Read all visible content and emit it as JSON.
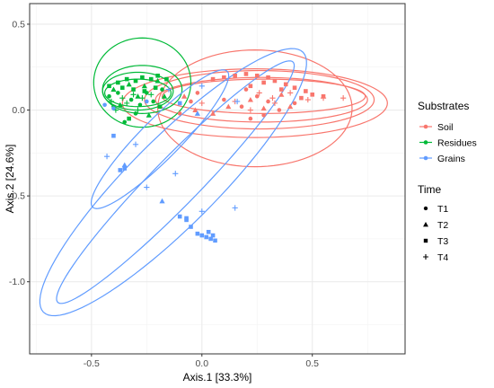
{
  "chart_data": {
    "type": "scatter",
    "xlabel": "Axis.1   [33.3%]",
    "ylabel": "Axis.2   [24.6%]",
    "xlim": [
      -0.78,
      0.92
    ],
    "ylim": [
      -1.42,
      0.62
    ],
    "x_ticks": [
      -0.5,
      0.0,
      0.5
    ],
    "x_tick_labels": [
      "-0.5",
      "0.0",
      "0.5"
    ],
    "y_ticks": [
      0.5,
      0.0,
      -0.5,
      -1.0
    ],
    "y_tick_labels": [
      "0.5",
      "0.0",
      "-0.5",
      "-1.0"
    ],
    "grid": true,
    "legend_position": "right",
    "colors": {
      "Soil": "#f8766d",
      "Residues": "#00ba38",
      "Grains": "#619cff"
    },
    "legends": [
      {
        "title": "Substrates",
        "entries": [
          "Soil",
          "Residues",
          "Grains"
        ]
      },
      {
        "title": "Time",
        "entries": [
          "T1",
          "T2",
          "T3",
          "T4"
        ]
      }
    ],
    "ellipses": [
      {
        "series": "Soil",
        "cx": 0.27,
        "cy": 0.06,
        "rx": 0.48,
        "ry": 0.13,
        "angle": 0
      },
      {
        "series": "Soil",
        "cx": 0.26,
        "cy": 0.06,
        "rx": 0.52,
        "ry": 0.17,
        "angle": 0
      },
      {
        "series": "Soil",
        "cx": 0.24,
        "cy": 0.04,
        "rx": 0.6,
        "ry": 0.2,
        "angle": 0
      },
      {
        "series": "Soil",
        "cx": 0.24,
        "cy": 0.01,
        "rx": 0.44,
        "ry": 0.34,
        "angle": 0
      },
      {
        "series": "Soil",
        "cx": 0.28,
        "cy": 0.08,
        "rx": 0.46,
        "ry": 0.1,
        "angle": 0
      },
      {
        "series": "Residues",
        "cx": -0.29,
        "cy": 0.1,
        "rx": 0.15,
        "ry": 0.08,
        "angle": 0
      },
      {
        "series": "Residues",
        "cx": -0.29,
        "cy": 0.11,
        "rx": 0.16,
        "ry": 0.11,
        "angle": 0
      },
      {
        "series": "Residues",
        "cx": -0.27,
        "cy": 0.12,
        "rx": 0.18,
        "ry": 0.14,
        "angle": 0
      },
      {
        "series": "Residues",
        "cx": -0.27,
        "cy": 0.16,
        "rx": 0.22,
        "ry": 0.26,
        "angle": 0
      },
      {
        "series": "Grains",
        "cx": -0.13,
        "cy": -0.42,
        "rx": 0.96,
        "ry": 0.22,
        "angle": 53
      },
      {
        "series": "Grains",
        "cx": -0.12,
        "cy": -0.42,
        "rx": 0.88,
        "ry": 0.12,
        "angle": 53
      },
      {
        "series": "Grains",
        "cx": -0.19,
        "cy": -0.17,
        "rx": 0.5,
        "ry": 0.1,
        "angle": 53
      }
    ],
    "series": [
      {
        "name": "Soil",
        "time": "T1",
        "points": [
          [
            0.25,
            0.08
          ],
          [
            0.3,
            0.05
          ],
          [
            0.18,
            0.02
          ],
          [
            0.35,
            0.0
          ],
          [
            0.22,
            -0.05
          ],
          [
            -0.05,
            0.05
          ],
          [
            0.1,
            0.06
          ],
          [
            -0.1,
            -0.02
          ],
          [
            0.42,
            0.04
          ],
          [
            0.28,
            -0.03
          ],
          [
            0.2,
            0.12
          ],
          [
            -0.02,
            0.1
          ]
        ]
      },
      {
        "series_note": "",
        "name": "Soil",
        "time": "T2",
        "points": [
          [
            0.12,
            0.02
          ],
          [
            0.28,
            0.01
          ],
          [
            -0.03,
            0.0
          ],
          [
            0.22,
            0.06
          ],
          [
            0.36,
            0.09
          ],
          [
            0.05,
            -0.02
          ],
          [
            0.4,
            0.02
          ],
          [
            -0.08,
            0.08
          ]
        ]
      },
      {
        "name": "Soil",
        "time": "T3",
        "points": [
          [
            0.15,
            0.2
          ],
          [
            0.2,
            0.21
          ],
          [
            0.25,
            0.2
          ],
          [
            0.3,
            0.19
          ],
          [
            0.33,
            0.17
          ],
          [
            0.38,
            0.15
          ],
          [
            0.42,
            0.13
          ],
          [
            0.47,
            0.11
          ],
          [
            0.5,
            0.09
          ],
          [
            0.55,
            0.08
          ],
          [
            0.1,
            0.19
          ],
          [
            0.05,
            0.18
          ],
          [
            0.36,
            0.12
          ],
          [
            0.45,
            0.07
          ],
          [
            0.28,
            0.16
          ],
          [
            0.22,
            0.14
          ]
        ]
      },
      {
        "name": "Soil",
        "time": "T4",
        "points": [
          [
            0.26,
            0.1
          ],
          [
            0.32,
            0.07
          ],
          [
            0.4,
            0.1
          ],
          [
            0.48,
            0.06
          ],
          [
            0.15,
            0.05
          ],
          [
            0.55,
            0.07
          ],
          [
            0.22,
            0.0
          ],
          [
            0.0,
            0.04
          ],
          [
            0.64,
            0.07
          ],
          [
            0.33,
            0.04
          ]
        ]
      },
      {
        "name": "Residues",
        "time": "T1",
        "points": [
          [
            -0.38,
            0.1
          ],
          [
            -0.32,
            0.06
          ],
          [
            -0.28,
            0.03
          ],
          [
            -0.35,
            -0.07
          ],
          [
            -0.4,
            0.02
          ],
          [
            -0.25,
            0.1
          ],
          [
            -0.22,
            0.05
          ],
          [
            -0.42,
            0.08
          ],
          [
            -0.3,
            -0.02
          ],
          [
            -0.18,
            0.12
          ]
        ]
      },
      {
        "name": "Residues",
        "time": "T2",
        "points": [
          [
            -0.4,
            0.12
          ],
          [
            -0.33,
            0.15
          ],
          [
            -0.26,
            0.14
          ],
          [
            -0.2,
            0.17
          ],
          [
            -0.37,
            0.03
          ],
          [
            -0.29,
            0.08
          ],
          [
            -0.24,
            -0.03
          ],
          [
            -0.17,
            0.08
          ]
        ]
      },
      {
        "name": "Residues",
        "time": "T3",
        "points": [
          [
            -0.42,
            0.14
          ],
          [
            -0.38,
            0.16
          ],
          [
            -0.34,
            0.18
          ],
          [
            -0.3,
            0.17
          ],
          [
            -0.27,
            0.19
          ],
          [
            -0.23,
            0.18
          ],
          [
            -0.2,
            0.2
          ],
          [
            -0.16,
            0.18
          ],
          [
            -0.36,
            0.13
          ],
          [
            -0.31,
            0.12
          ],
          [
            -0.26,
            0.11
          ],
          [
            -0.21,
            0.13
          ],
          [
            -0.33,
            -0.05
          ],
          [
            -0.19,
            0.02
          ]
        ]
      },
      {
        "name": "Residues",
        "time": "T4",
        "points": [
          [
            -0.41,
            0.05
          ],
          [
            -0.36,
            0.07
          ],
          [
            -0.31,
            0.09
          ],
          [
            -0.27,
            0.07
          ],
          [
            -0.23,
            0.09
          ],
          [
            -0.39,
            0.0
          ],
          [
            -0.34,
            0.04
          ],
          [
            -0.29,
            0.0
          ]
        ]
      },
      {
        "name": "Grains",
        "time": "T1",
        "points": [
          [
            -0.44,
            0.03
          ],
          [
            -0.25,
            0.05
          ],
          [
            -0.4,
            0.01
          ]
        ]
      },
      {
        "name": "Grains",
        "time": "T2",
        "points": [
          [
            -0.35,
            -0.32
          ],
          [
            -0.18,
            -0.53
          ],
          [
            -0.02,
            -0.02
          ]
        ]
      },
      {
        "name": "Grains",
        "time": "T3",
        "points": [
          [
            -0.35,
            -0.34
          ],
          [
            -0.37,
            -0.35
          ],
          [
            -0.1,
            -0.62
          ],
          [
            -0.07,
            -0.64
          ],
          [
            -0.05,
            -0.68
          ],
          [
            -0.02,
            -0.72
          ],
          [
            0.0,
            -0.73
          ],
          [
            0.02,
            -0.74
          ],
          [
            0.04,
            -0.75
          ],
          [
            0.05,
            -0.73
          ],
          [
            0.03,
            -0.71
          ],
          [
            -0.07,
            -0.63
          ],
          [
            0.06,
            -0.76
          ],
          [
            -0.4,
            -0.15
          ],
          [
            -0.1,
            0.04
          ]
        ]
      },
      {
        "name": "Grains",
        "time": "T4",
        "points": [
          [
            -0.43,
            -0.27
          ],
          [
            -0.25,
            -0.45
          ],
          [
            -0.12,
            -0.37
          ],
          [
            0.0,
            -0.59
          ],
          [
            0.15,
            -0.57
          ],
          [
            -0.15,
            0.12
          ],
          [
            -0.3,
            -0.2
          ],
          [
            0.0,
            0.14
          ],
          [
            0.16,
            0.05
          ]
        ]
      }
    ]
  }
}
